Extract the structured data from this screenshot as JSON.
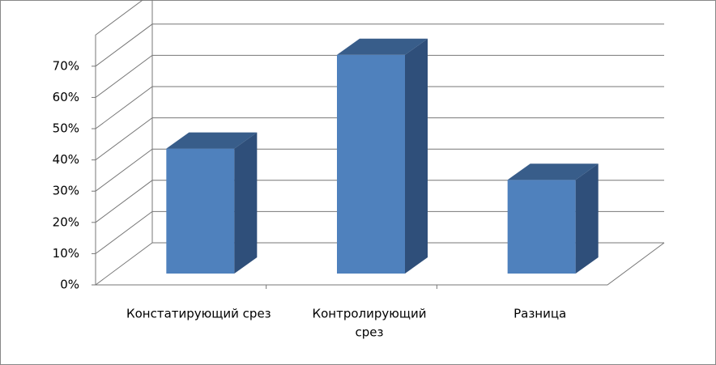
{
  "chart_data": {
    "type": "bar3d",
    "categories": [
      [
        "Констатирующий срез"
      ],
      [
        "Контролирующий",
        "срез"
      ],
      [
        "Разница"
      ]
    ],
    "values": [
      40,
      70,
      30
    ],
    "color": "#4f81bd",
    "side_color": "#2f4f7a",
    "top_color": "#385d8a",
    "ylim": [
      0,
      80
    ],
    "yticks": [
      {
        "value": 0,
        "label": "0%"
      },
      {
        "value": 10,
        "label": "10%"
      },
      {
        "value": 20,
        "label": "20%"
      },
      {
        "value": 30,
        "label": "30%"
      },
      {
        "value": 40,
        "label": "40%"
      },
      {
        "value": 50,
        "label": "50%"
      },
      {
        "value": 60,
        "label": "60%"
      },
      {
        "value": 70,
        "label": "70%"
      }
    ],
    "grid": true
  }
}
